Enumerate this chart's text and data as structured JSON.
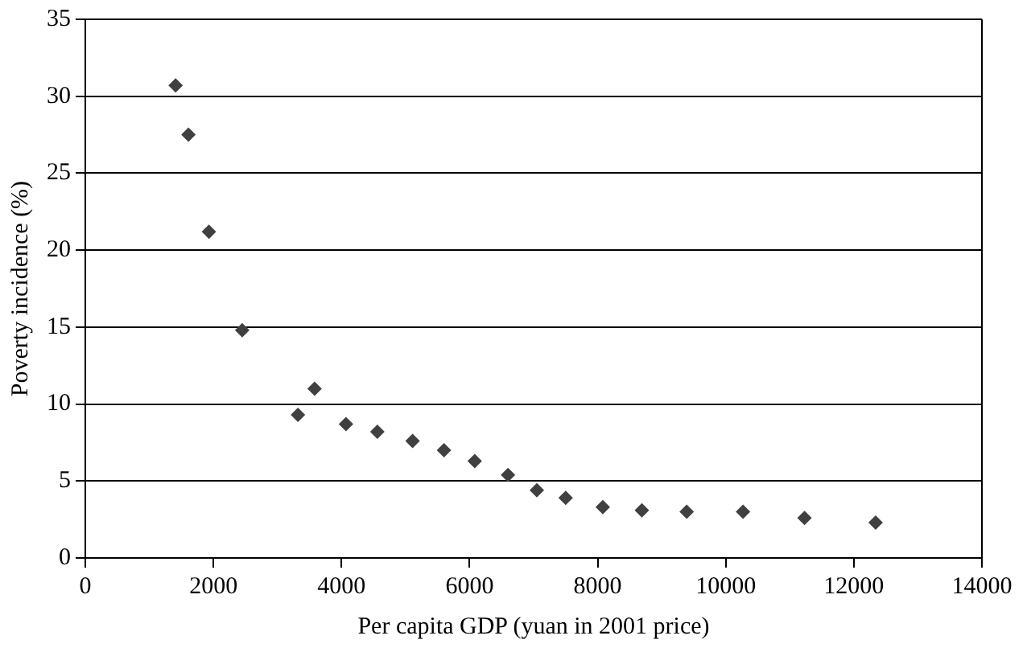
{
  "chart_data": {
    "type": "scatter",
    "xlabel": "Per capita GDP (yuan in 2001 price)",
    "ylabel": "Poverty incidence (%)",
    "x": [
      1410,
      1610,
      1930,
      2450,
      3320,
      3580,
      4070,
      4560,
      5110,
      5600,
      6080,
      6600,
      7050,
      7500,
      8080,
      8690,
      9390,
      10270,
      11230,
      12340
    ],
    "series": [
      {
        "color": "#404040",
        "values": [
          30.7,
          27.5,
          21.2,
          14.8,
          9.3,
          11.0,
          8.7,
          8.2,
          7.6,
          7.0,
          6.3,
          5.4,
          4.4,
          3.9,
          3.3,
          3.1,
          3.0,
          3.0,
          2.6,
          2.3
        ]
      }
    ],
    "xlim": [
      0,
      14000
    ],
    "xticks": [
      0,
      2000,
      4000,
      6000,
      8000,
      10000,
      12000,
      14000
    ],
    "ylim": [
      0,
      35
    ],
    "yticks": [
      0,
      5,
      10,
      15,
      20,
      25,
      30,
      35
    ],
    "grid": "y",
    "marker": "diamond",
    "legend": false
  }
}
